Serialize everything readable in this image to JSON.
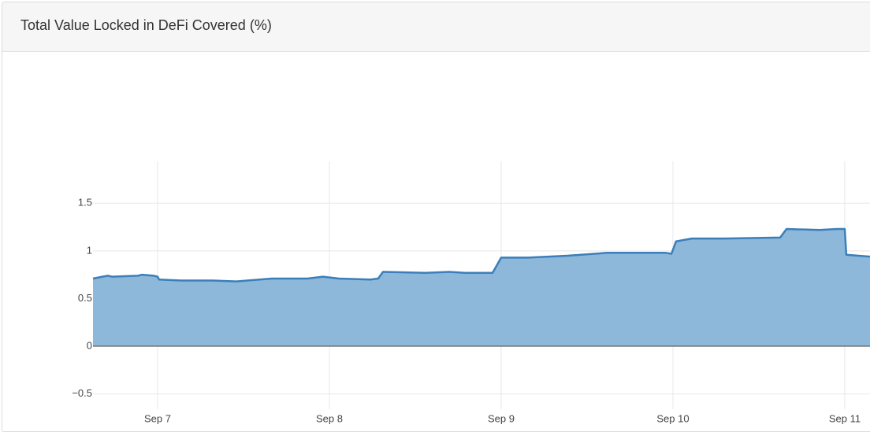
{
  "chart_data": {
    "type": "area",
    "title": "Total Value Locked in DeFi Covered (%)",
    "x": [
      6.624,
      6.679,
      6.711,
      6.734,
      6.885,
      6.908,
      6.977,
      7.0,
      7.009,
      7.138,
      7.321,
      7.459,
      7.665,
      7.872,
      7.963,
      8.055,
      8.239,
      8.284,
      8.312,
      8.56,
      8.697,
      8.789,
      8.95,
      9.0,
      9.156,
      9.385,
      9.615,
      9.752,
      9.89,
      9.959,
      9.991,
      10.018,
      10.11,
      10.303,
      10.624,
      10.661,
      10.853,
      10.954,
      11.0,
      11.009,
      11.147
    ],
    "series": [
      {
        "color": "#3b7fba",
        "fill": "#8db8da",
        "values": [
          0.71,
          0.73,
          0.74,
          0.73,
          0.74,
          0.75,
          0.74,
          0.73,
          0.7,
          0.69,
          0.69,
          0.68,
          0.71,
          0.71,
          0.73,
          0.71,
          0.7,
          0.71,
          0.78,
          0.77,
          0.78,
          0.77,
          0.77,
          0.93,
          0.93,
          0.95,
          0.98,
          0.98,
          0.98,
          0.98,
          0.97,
          1.1,
          1.13,
          1.13,
          1.14,
          1.23,
          1.22,
          1.23,
          1.23,
          0.96,
          0.94
        ]
      }
    ],
    "xlim": [
      6.624,
      11.147
    ],
    "xticks": [
      {
        "value": 7,
        "label": "Sep 7"
      },
      {
        "value": 8,
        "label": "Sep 8"
      },
      {
        "value": 9,
        "label": "Sep 9"
      },
      {
        "value": 10,
        "label": "Sep 10"
      },
      {
        "value": 11,
        "label": "Sep 11"
      }
    ],
    "ylim": [
      -0.66,
      1.94
    ],
    "yticks": [
      {
        "value": -0.5,
        "label": "−0.5"
      },
      0,
      0.5,
      1,
      1.5
    ],
    "grid": true
  }
}
